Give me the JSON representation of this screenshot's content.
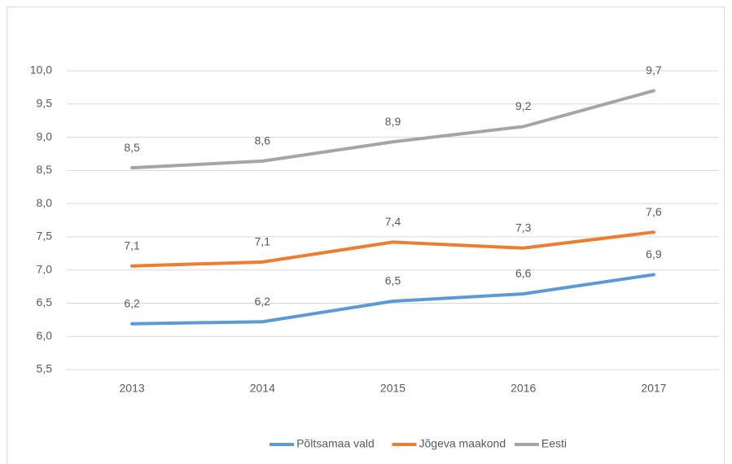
{
  "chart_data": {
    "type": "line",
    "categories": [
      "2013",
      "2014",
      "2015",
      "2016",
      "2017"
    ],
    "series": [
      {
        "name": "Põltsamaa vald",
        "color": "#5b9bd5",
        "values": [
          6.19,
          6.22,
          6.53,
          6.64,
          6.93
        ],
        "value_labels": [
          "6,2",
          "6,2",
          "6,5",
          "6,6",
          "6,9"
        ]
      },
      {
        "name": "Jõgeva maakond",
        "color": "#ed7d31",
        "values": [
          7.06,
          7.12,
          7.42,
          7.33,
          7.57
        ],
        "value_labels": [
          "7,1",
          "7,1",
          "7,4",
          "7,3",
          "7,6"
        ]
      },
      {
        "name": "Eesti",
        "color": "#a5a5a5",
        "values": [
          8.54,
          8.64,
          8.93,
          9.16,
          9.7
        ],
        "value_labels": [
          "8,5",
          "8,6",
          "8,9",
          "9,2",
          "9,7"
        ]
      }
    ],
    "ylim": [
      5.5,
      10.0
    ],
    "yticks": [
      {
        "value": 5.5,
        "label": "5,5"
      },
      {
        "value": 6.0,
        "label": "6,0"
      },
      {
        "value": 6.5,
        "label": "6,5"
      },
      {
        "value": 7.0,
        "label": "7,0"
      },
      {
        "value": 7.5,
        "label": "7,5"
      },
      {
        "value": 8.0,
        "label": "8,0"
      },
      {
        "value": 8.5,
        "label": "8,5"
      },
      {
        "value": 9.0,
        "label": "9,0"
      },
      {
        "value": 9.5,
        "label": "9,5"
      },
      {
        "value": 10.0,
        "label": "10,0"
      }
    ],
    "grid": true,
    "legend": "bottom"
  }
}
